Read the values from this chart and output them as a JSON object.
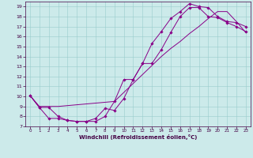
{
  "xlabel": "Windchill (Refroidissement éolien,°C)",
  "bg_color": "#cceaea",
  "line_color": "#880088",
  "grid_color": "#99cccc",
  "xlim": [
    -0.5,
    23.5
  ],
  "ylim": [
    7,
    19.5
  ],
  "xticks": [
    0,
    1,
    2,
    3,
    4,
    5,
    6,
    7,
    8,
    9,
    10,
    11,
    12,
    13,
    14,
    15,
    16,
    17,
    18,
    19,
    20,
    21,
    22,
    23
  ],
  "yticks": [
    7,
    8,
    9,
    10,
    11,
    12,
    13,
    14,
    15,
    16,
    17,
    18,
    19
  ],
  "line1_x": [
    0,
    1,
    2,
    3,
    4,
    5,
    6,
    7,
    8,
    9,
    10,
    11,
    12,
    13,
    14,
    15,
    16,
    17,
    18,
    19,
    20,
    21,
    22,
    23
  ],
  "line1_y": [
    10.1,
    8.9,
    8.9,
    8.0,
    7.6,
    7.5,
    7.5,
    7.5,
    8.0,
    9.5,
    11.7,
    11.7,
    13.3,
    13.3,
    14.7,
    16.4,
    18.0,
    18.9,
    18.9,
    18.0,
    17.9,
    17.4,
    17.0,
    16.5
  ],
  "line2_x": [
    0,
    1,
    2,
    3,
    4,
    5,
    6,
    7,
    8,
    9,
    10,
    11,
    12,
    13,
    14,
    15,
    16,
    17,
    18,
    19,
    20,
    21,
    22,
    23
  ],
  "line2_y": [
    10.1,
    8.9,
    7.8,
    7.8,
    7.6,
    7.5,
    7.5,
    7.8,
    8.8,
    8.6,
    9.8,
    11.7,
    13.3,
    15.3,
    16.5,
    17.8,
    18.5,
    19.3,
    19.0,
    18.9,
    18.0,
    17.5,
    17.4,
    17.0
  ],
  "line3_x": [
    0,
    1,
    3,
    9,
    14,
    15,
    16,
    17,
    18,
    19,
    20,
    21,
    22,
    23
  ],
  "line3_y": [
    10.1,
    9.0,
    9.0,
    9.5,
    14.0,
    14.8,
    15.5,
    16.3,
    17.0,
    17.8,
    18.5,
    18.5,
    17.5,
    16.4
  ]
}
